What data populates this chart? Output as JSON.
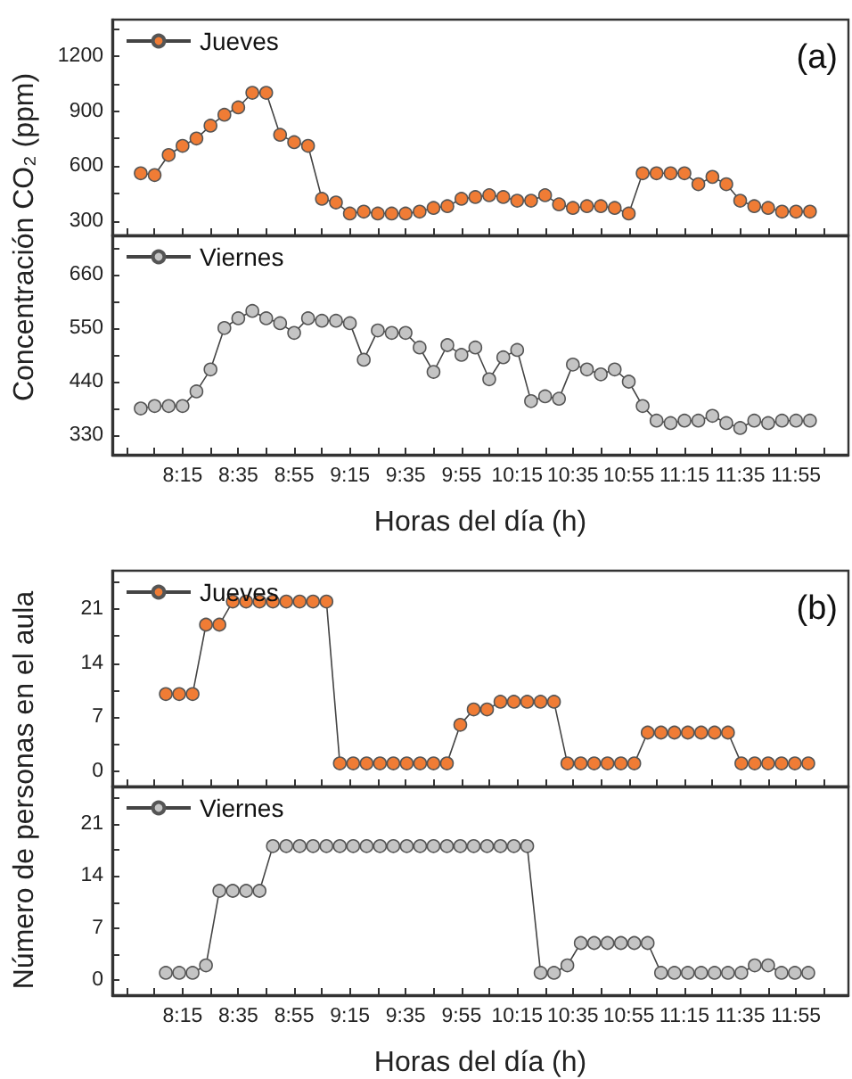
{
  "chart_data": [
    {
      "type": "line",
      "ylabel": "Concentración CO₂ (ppm)",
      "annotations": [
        "(a)"
      ],
      "legend": "top left",
      "marker": "circle",
      "tick_labels": "y",
      "xticks": [
        {
          "value": 7.917,
          "label": null
        },
        {
          "value": 8.083,
          "label": null
        },
        {
          "value": 8.25,
          "label": null
        },
        {
          "value": 8.417,
          "label": null
        },
        {
          "value": 8.583,
          "label": null
        },
        {
          "value": 8.75,
          "label": null
        },
        {
          "value": 8.917,
          "label": null
        },
        {
          "value": 9.083,
          "label": null
        },
        {
          "value": 9.25,
          "label": null
        },
        {
          "value": 9.417,
          "label": null
        },
        {
          "value": 9.583,
          "label": null
        },
        {
          "value": 9.75,
          "label": null
        },
        {
          "value": 9.917,
          "label": null
        },
        {
          "value": 10.083,
          "label": null
        },
        {
          "value": 10.25,
          "label": null
        },
        {
          "value": 10.417,
          "label": null
        },
        {
          "value": 10.583,
          "label": null
        },
        {
          "value": 10.75,
          "label": null
        },
        {
          "value": 10.917,
          "label": null
        },
        {
          "value": 11.083,
          "label": null
        },
        {
          "value": 11.25,
          "label": null
        },
        {
          "value": 11.417,
          "label": null
        },
        {
          "value": 11.583,
          "label": null
        },
        {
          "value": 11.75,
          "label": null
        },
        {
          "value": 11.917,
          "label": null
        },
        {
          "value": 12.083,
          "label": null
        }
      ],
      "x": [
        8,
        8.083,
        8.167,
        8.25,
        8.333,
        8.417,
        8.5,
        8.583,
        8.667,
        8.75,
        8.833,
        8.917,
        9,
        9.083,
        9.167,
        9.25,
        9.333,
        9.417,
        9.5,
        9.583,
        9.667,
        9.75,
        9.833,
        9.917,
        10,
        10.083,
        10.167,
        10.25,
        10.333,
        10.417,
        10.5,
        10.583,
        10.667,
        10.75,
        10.833,
        10.917,
        11,
        11.083,
        11.167,
        11.25,
        11.333,
        11.417,
        11.5,
        11.583,
        11.667,
        11.75,
        11.833,
        11.917,
        12
      ],
      "series": [
        {
          "name": "Jueves",
          "color": "#f07c35",
          "values": [
            560,
            550,
            660,
            710,
            750,
            820,
            880,
            920,
            1000,
            1000,
            770,
            730,
            710,
            420,
            400,
            340,
            350,
            340,
            340,
            340,
            350,
            370,
            380,
            420,
            430,
            440,
            430,
            410,
            410,
            440,
            390,
            370,
            380,
            380,
            370,
            340,
            560,
            560,
            560,
            560,
            500,
            540,
            500,
            410,
            380,
            370,
            350,
            350,
            350
          ]
        }
      ],
      "xlim": [
        7.83,
        12.23
      ],
      "ylim": [
        220,
        1400
      ],
      "yticks": [
        300,
        {
          "value": 450,
          "label": null
        },
        600,
        {
          "value": 750,
          "label": null
        },
        900,
        {
          "value": 1050,
          "label": null
        },
        1200,
        {
          "value": 1350,
          "label": null
        }
      ]
    },
    {
      "type": "line",
      "xlabel": "Horas del día (h)",
      "legend": "top left",
      "marker": "circle",
      "x": [
        8,
        8.083,
        8.167,
        8.25,
        8.333,
        8.417,
        8.5,
        8.583,
        8.667,
        8.75,
        8.833,
        8.917,
        9,
        9.083,
        9.167,
        9.25,
        9.333,
        9.417,
        9.5,
        9.583,
        9.667,
        9.75,
        9.833,
        9.917,
        10,
        10.083,
        10.167,
        10.25,
        10.333,
        10.417,
        10.5,
        10.583,
        10.667,
        10.75,
        10.833,
        10.917,
        11,
        11.083,
        11.167,
        11.25,
        11.333,
        11.417,
        11.5,
        11.583,
        11.667,
        11.75,
        11.833,
        11.917,
        12
      ],
      "series": [
        {
          "name": "Viernes",
          "color": "#c4c4c4",
          "values": [
            385,
            390,
            390,
            390,
            420,
            465,
            550,
            570,
            585,
            570,
            560,
            540,
            570,
            565,
            565,
            560,
            485,
            545,
            540,
            540,
            510,
            460,
            515,
            495,
            510,
            445,
            490,
            505,
            400,
            410,
            405,
            475,
            465,
            455,
            465,
            440,
            390,
            360,
            355,
            360,
            360,
            370,
            355,
            345,
            360,
            355,
            360,
            360,
            360
          ]
        }
      ],
      "xlim": [
        7.83,
        12.23
      ],
      "xticks": [
        {
          "value": 7.917,
          "label": null
        },
        {
          "value": 8.083,
          "label": null
        },
        {
          "value": 8.25,
          "label": "8:15"
        },
        {
          "value": 8.417,
          "label": null
        },
        {
          "value": 8.583,
          "label": "8:35"
        },
        {
          "value": 8.75,
          "label": null
        },
        {
          "value": 8.917,
          "label": "8:55"
        },
        {
          "value": 9.083,
          "label": null
        },
        {
          "value": 9.25,
          "label": "9:15"
        },
        {
          "value": 9.417,
          "label": null
        },
        {
          "value": 9.583,
          "label": "9:35"
        },
        {
          "value": 9.75,
          "label": null
        },
        {
          "value": 9.917,
          "label": "9:55"
        },
        {
          "value": 10.083,
          "label": null
        },
        {
          "value": 10.25,
          "label": "10:15"
        },
        {
          "value": 10.417,
          "label": null
        },
        {
          "value": 10.583,
          "label": "10:35"
        },
        {
          "value": 10.75,
          "label": null
        },
        {
          "value": 10.917,
          "label": "10:55"
        },
        {
          "value": 11.083,
          "label": null
        },
        {
          "value": 11.25,
          "label": "11:15"
        },
        {
          "value": 11.417,
          "label": null
        },
        {
          "value": 11.583,
          "label": "11:35"
        },
        {
          "value": 11.75,
          "label": null
        },
        {
          "value": 11.917,
          "label": "11:55"
        },
        {
          "value": 12.083,
          "label": null
        }
      ],
      "ylim": [
        290,
        740
      ],
      "yticks": [
        330,
        {
          "value": 385,
          "label": null
        },
        440,
        {
          "value": 495,
          "label": null
        },
        550,
        {
          "value": 605,
          "label": null
        },
        660,
        {
          "value": 715,
          "label": null
        }
      ]
    },
    {
      "type": "line",
      "ylabel": "Número de personas en el aula",
      "annotations": [
        "(b)"
      ],
      "legend": "top left",
      "marker": "circle",
      "tick_labels": "y",
      "xticks": [
        {
          "value": 7.917,
          "label": null
        },
        {
          "value": 8.083,
          "label": null
        },
        {
          "value": 8.25,
          "label": null
        },
        {
          "value": 8.417,
          "label": null
        },
        {
          "value": 8.583,
          "label": null
        },
        {
          "value": 8.75,
          "label": null
        },
        {
          "value": 8.917,
          "label": null
        },
        {
          "value": 9.083,
          "label": null
        },
        {
          "value": 9.25,
          "label": null
        },
        {
          "value": 9.417,
          "label": null
        },
        {
          "value": 9.583,
          "label": null
        },
        {
          "value": 9.75,
          "label": null
        },
        {
          "value": 9.917,
          "label": null
        },
        {
          "value": 10.083,
          "label": null
        },
        {
          "value": 10.25,
          "label": null
        },
        {
          "value": 10.417,
          "label": null
        },
        {
          "value": 10.583,
          "label": null
        },
        {
          "value": 10.75,
          "label": null
        },
        {
          "value": 10.917,
          "label": null
        },
        {
          "value": 11.083,
          "label": null
        },
        {
          "value": 11.25,
          "label": null
        },
        {
          "value": 11.417,
          "label": null
        },
        {
          "value": 11.583,
          "label": null
        },
        {
          "value": 11.75,
          "label": null
        },
        {
          "value": 11.917,
          "label": null
        },
        {
          "value": 12.083,
          "label": null
        }
      ],
      "x": [
        8.15,
        8.23,
        8.31,
        8.39,
        8.47,
        8.55,
        8.63,
        8.71,
        8.79,
        8.87,
        8.95,
        9.03,
        9.11,
        9.19,
        9.27,
        9.35,
        9.43,
        9.51,
        9.59,
        9.67,
        9.75,
        9.83,
        9.91,
        9.99,
        10.07,
        10.15,
        10.23,
        10.31,
        10.39,
        10.47,
        10.55,
        10.63,
        10.71,
        10.79,
        10.87,
        10.95,
        11.03,
        11.11,
        11.19,
        11.27,
        11.35,
        11.43,
        11.51,
        11.59,
        11.67,
        11.75,
        11.83,
        11.91,
        11.99
      ],
      "series": [
        {
          "name": "Jueves",
          "color": "#f07c35",
          "values": [
            10,
            10,
            10,
            19,
            19,
            22,
            22,
            22,
            22,
            22,
            22,
            22,
            22,
            1,
            1,
            1,
            1,
            1,
            1,
            1,
            1,
            1,
            6,
            8,
            8,
            9,
            9,
            9,
            9,
            9,
            1,
            1,
            1,
            1,
            1,
            1,
            5,
            5,
            5,
            5,
            5,
            5,
            5,
            1,
            1,
            1,
            1,
            1,
            1
          ]
        }
      ],
      "xlim": [
        7.83,
        12.23
      ],
      "ylim": [
        -2,
        26
      ],
      "yticks": [
        0,
        {
          "value": 3.5,
          "label": null
        },
        7,
        {
          "value": 10.5,
          "label": null
        },
        14,
        {
          "value": 17.5,
          "label": null
        },
        21,
        {
          "value": 24.5,
          "label": null
        }
      ]
    },
    {
      "type": "line",
      "xlabel": "Horas del día (h)",
      "legend": "top left",
      "marker": "circle",
      "x": [
        8.15,
        8.23,
        8.31,
        8.39,
        8.47,
        8.55,
        8.63,
        8.71,
        8.79,
        8.87,
        8.95,
        9.03,
        9.11,
        9.19,
        9.27,
        9.35,
        9.43,
        9.51,
        9.59,
        9.67,
        9.75,
        9.83,
        9.91,
        9.99,
        10.07,
        10.15,
        10.23,
        10.31,
        10.39,
        10.47,
        10.55,
        10.63,
        10.71,
        10.79,
        10.87,
        10.95,
        11.03,
        11.11,
        11.19,
        11.27,
        11.35,
        11.43,
        11.51,
        11.59,
        11.67,
        11.75,
        11.83,
        11.91,
        11.99
      ],
      "series": [
        {
          "name": "Viernes",
          "color": "#c4c4c4",
          "values": [
            1,
            1,
            1,
            2,
            12,
            12,
            12,
            12,
            18,
            18,
            18,
            18,
            18,
            18,
            18,
            18,
            18,
            18,
            18,
            18,
            18,
            18,
            18,
            18,
            18,
            18,
            18,
            18,
            1,
            1,
            2,
            5,
            5,
            5,
            5,
            5,
            5,
            1,
            1,
            1,
            1,
            1,
            1,
            1,
            2,
            2,
            1,
            1,
            1
          ]
        }
      ],
      "xlim": [
        7.83,
        12.23
      ],
      "xticks": [
        {
          "value": 7.917,
          "label": null
        },
        {
          "value": 8.083,
          "label": null
        },
        {
          "value": 8.25,
          "label": "8:15"
        },
        {
          "value": 8.417,
          "label": null
        },
        {
          "value": 8.583,
          "label": "8:35"
        },
        {
          "value": 8.75,
          "label": null
        },
        {
          "value": 8.917,
          "label": "8:55"
        },
        {
          "value": 9.083,
          "label": null
        },
        {
          "value": 9.25,
          "label": "9:15"
        },
        {
          "value": 9.417,
          "label": null
        },
        {
          "value": 9.583,
          "label": "9:35"
        },
        {
          "value": 9.75,
          "label": null
        },
        {
          "value": 9.917,
          "label": "9:55"
        },
        {
          "value": 10.083,
          "label": null
        },
        {
          "value": 10.25,
          "label": "10:15"
        },
        {
          "value": 10.417,
          "label": null
        },
        {
          "value": 10.583,
          "label": "10:35"
        },
        {
          "value": 10.75,
          "label": null
        },
        {
          "value": 10.917,
          "label": "10:55"
        },
        {
          "value": 11.083,
          "label": null
        },
        {
          "value": 11.25,
          "label": "11:15"
        },
        {
          "value": 11.417,
          "label": null
        },
        {
          "value": 11.583,
          "label": "11:35"
        },
        {
          "value": 11.75,
          "label": null
        },
        {
          "value": 11.917,
          "label": "11:55"
        },
        {
          "value": 12.083,
          "label": null
        }
      ],
      "ylim": [
        -2,
        26
      ],
      "yticks": [
        0,
        {
          "value": 3.5,
          "label": null
        },
        7,
        {
          "value": 10.5,
          "label": null
        },
        14,
        {
          "value": 17.5,
          "label": null
        },
        21,
        {
          "value": 24.5,
          "label": null
        }
      ]
    }
  ]
}
